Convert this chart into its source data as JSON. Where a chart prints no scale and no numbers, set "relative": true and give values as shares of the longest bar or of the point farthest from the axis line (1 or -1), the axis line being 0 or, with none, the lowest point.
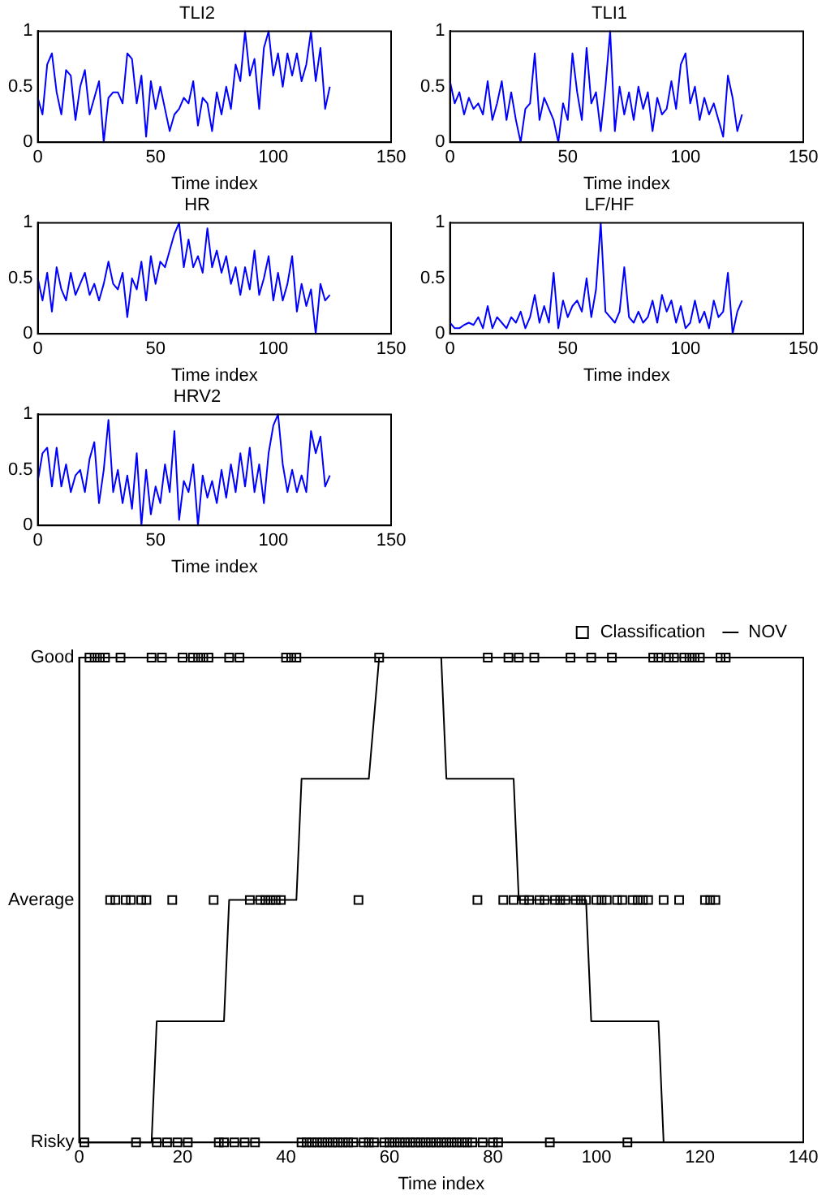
{
  "chart_data": [
    {
      "type": "line",
      "title": "TLI2",
      "xlabel": "Time index",
      "color": "#0000ff",
      "xlim": [
        0,
        150
      ],
      "xticks": [
        0,
        50,
        100,
        150
      ],
      "ylim": [
        0,
        1
      ],
      "yticks": [
        0,
        0.5,
        1
      ],
      "x": [
        0,
        2,
        4,
        6,
        8,
        10,
        12,
        14,
        16,
        18,
        20,
        22,
        24,
        26,
        28,
        30,
        32,
        34,
        36,
        38,
        40,
        42,
        44,
        46,
        48,
        50,
        52,
        54,
        56,
        58,
        60,
        62,
        64,
        66,
        68,
        70,
        72,
        74,
        76,
        78,
        80,
        82,
        84,
        86,
        88,
        90,
        92,
        94,
        96,
        98,
        100,
        102,
        104,
        106,
        108,
        110,
        112,
        114,
        116,
        118,
        120,
        122,
        124
      ],
      "values": [
        0.4,
        0.25,
        0.7,
        0.8,
        0.45,
        0.25,
        0.65,
        0.6,
        0.2,
        0.5,
        0.65,
        0.25,
        0.4,
        0.55,
        0.0,
        0.4,
        0.45,
        0.45,
        0.35,
        0.8,
        0.75,
        0.35,
        0.6,
        0.05,
        0.55,
        0.3,
        0.5,
        0.3,
        0.1,
        0.25,
        0.3,
        0.4,
        0.35,
        0.55,
        0.15,
        0.4,
        0.35,
        0.1,
        0.45,
        0.25,
        0.5,
        0.3,
        0.7,
        0.55,
        1.0,
        0.6,
        0.75,
        0.3,
        0.85,
        1.0,
        0.6,
        0.8,
        0.5,
        0.8,
        0.6,
        0.8,
        0.55,
        0.7,
        1.0,
        0.55,
        0.85,
        0.3,
        0.5
      ]
    },
    {
      "type": "line",
      "title": "TLI1",
      "xlabel": "Time index",
      "color": "#0000ff",
      "xlim": [
        0,
        150
      ],
      "xticks": [
        0,
        50,
        100,
        150
      ],
      "ylim": [
        0,
        1
      ],
      "yticks": [
        0,
        0.5,
        1
      ],
      "x": [
        0,
        2,
        4,
        6,
        8,
        10,
        12,
        14,
        16,
        18,
        20,
        22,
        24,
        26,
        28,
        30,
        32,
        34,
        36,
        38,
        40,
        42,
        44,
        46,
        48,
        50,
        52,
        54,
        56,
        58,
        60,
        62,
        64,
        66,
        68,
        70,
        72,
        74,
        76,
        78,
        80,
        82,
        84,
        86,
        88,
        90,
        92,
        94,
        96,
        98,
        100,
        102,
        104,
        106,
        108,
        110,
        112,
        114,
        116,
        118,
        120,
        122,
        124
      ],
      "values": [
        0.55,
        0.35,
        0.45,
        0.25,
        0.4,
        0.3,
        0.35,
        0.25,
        0.55,
        0.2,
        0.35,
        0.55,
        0.2,
        0.45,
        0.2,
        0.0,
        0.3,
        0.35,
        0.8,
        0.2,
        0.4,
        0.3,
        0.2,
        0.0,
        0.35,
        0.2,
        0.8,
        0.45,
        0.2,
        0.85,
        0.35,
        0.45,
        0.1,
        0.5,
        1.0,
        0.1,
        0.5,
        0.25,
        0.45,
        0.2,
        0.5,
        0.3,
        0.45,
        0.1,
        0.4,
        0.25,
        0.3,
        0.55,
        0.3,
        0.7,
        0.8,
        0.35,
        0.5,
        0.2,
        0.4,
        0.25,
        0.35,
        0.2,
        0.05,
        0.6,
        0.4,
        0.1,
        0.25
      ]
    },
    {
      "type": "line",
      "title": "HR",
      "xlabel": "Time index",
      "color": "#0000ff",
      "xlim": [
        0,
        150
      ],
      "xticks": [
        0,
        50,
        100,
        150
      ],
      "ylim": [
        0,
        1
      ],
      "yticks": [
        0,
        0.5,
        1
      ],
      "x": [
        0,
        2,
        4,
        6,
        8,
        10,
        12,
        14,
        16,
        18,
        20,
        22,
        24,
        26,
        28,
        30,
        32,
        34,
        36,
        38,
        40,
        42,
        44,
        46,
        48,
        50,
        52,
        54,
        56,
        58,
        60,
        62,
        64,
        66,
        68,
        70,
        72,
        74,
        76,
        78,
        80,
        82,
        84,
        86,
        88,
        90,
        92,
        94,
        96,
        98,
        100,
        102,
        104,
        106,
        108,
        110,
        112,
        114,
        116,
        118,
        120,
        122,
        124
      ],
      "values": [
        0.5,
        0.3,
        0.55,
        0.2,
        0.6,
        0.4,
        0.3,
        0.55,
        0.35,
        0.45,
        0.55,
        0.35,
        0.45,
        0.3,
        0.45,
        0.65,
        0.45,
        0.4,
        0.55,
        0.15,
        0.5,
        0.4,
        0.65,
        0.3,
        0.7,
        0.45,
        0.65,
        0.6,
        0.75,
        0.9,
        1.0,
        0.6,
        0.85,
        0.6,
        0.7,
        0.55,
        0.95,
        0.6,
        0.75,
        0.55,
        0.7,
        0.45,
        0.6,
        0.35,
        0.6,
        0.4,
        0.75,
        0.35,
        0.5,
        0.7,
        0.3,
        0.55,
        0.3,
        0.45,
        0.7,
        0.2,
        0.45,
        0.25,
        0.4,
        0.0,
        0.45,
        0.3,
        0.35
      ]
    },
    {
      "type": "line",
      "title": "LF/HF",
      "xlabel": "Time index",
      "color": "#0000ff",
      "xlim": [
        0,
        150
      ],
      "xticks": [
        0,
        50,
        100,
        150
      ],
      "ylim": [
        0,
        1
      ],
      "yticks": [
        0,
        0.5,
        1
      ],
      "x": [
        0,
        2,
        4,
        6,
        8,
        10,
        12,
        14,
        16,
        18,
        20,
        22,
        24,
        26,
        28,
        30,
        32,
        34,
        36,
        38,
        40,
        42,
        44,
        46,
        48,
        50,
        52,
        54,
        56,
        58,
        60,
        62,
        64,
        66,
        68,
        70,
        72,
        74,
        76,
        78,
        80,
        82,
        84,
        86,
        88,
        90,
        92,
        94,
        96,
        98,
        100,
        102,
        104,
        106,
        108,
        110,
        112,
        114,
        116,
        118,
        120,
        122,
        124
      ],
      "values": [
        0.1,
        0.05,
        0.05,
        0.08,
        0.1,
        0.08,
        0.15,
        0.05,
        0.25,
        0.05,
        0.15,
        0.1,
        0.05,
        0.15,
        0.1,
        0.2,
        0.05,
        0.15,
        0.35,
        0.1,
        0.25,
        0.1,
        0.55,
        0.05,
        0.3,
        0.15,
        0.25,
        0.3,
        0.2,
        0.5,
        0.15,
        0.4,
        1.0,
        0.2,
        0.15,
        0.1,
        0.2,
        0.6,
        0.15,
        0.1,
        0.2,
        0.1,
        0.15,
        0.3,
        0.1,
        0.35,
        0.2,
        0.3,
        0.1,
        0.25,
        0.05,
        0.1,
        0.3,
        0.1,
        0.2,
        0.05,
        0.3,
        0.15,
        0.2,
        0.55,
        0.0,
        0.2,
        0.3
      ]
    },
    {
      "type": "line",
      "title": "HRV2",
      "xlabel": "Time index",
      "color": "#0000ff",
      "xlim": [
        0,
        150
      ],
      "xticks": [
        0,
        50,
        100,
        150
      ],
      "ylim": [
        0,
        1
      ],
      "yticks": [
        0,
        0.5,
        1
      ],
      "x": [
        0,
        2,
        4,
        6,
        8,
        10,
        12,
        14,
        16,
        18,
        20,
        22,
        24,
        26,
        28,
        30,
        32,
        34,
        36,
        38,
        40,
        42,
        44,
        46,
        48,
        50,
        52,
        54,
        56,
        58,
        60,
        62,
        64,
        66,
        68,
        70,
        72,
        74,
        76,
        78,
        80,
        82,
        84,
        86,
        88,
        90,
        92,
        94,
        96,
        98,
        100,
        102,
        104,
        106,
        108,
        110,
        112,
        114,
        116,
        118,
        120,
        122,
        124
      ],
      "values": [
        0.4,
        0.65,
        0.7,
        0.35,
        0.7,
        0.35,
        0.55,
        0.3,
        0.45,
        0.5,
        0.3,
        0.6,
        0.75,
        0.2,
        0.5,
        0.95,
        0.3,
        0.5,
        0.2,
        0.45,
        0.15,
        0.65,
        0.0,
        0.5,
        0.1,
        0.35,
        0.2,
        0.55,
        0.3,
        0.85,
        0.05,
        0.4,
        0.3,
        0.55,
        0.0,
        0.45,
        0.25,
        0.4,
        0.2,
        0.5,
        0.25,
        0.55,
        0.3,
        0.65,
        0.35,
        0.7,
        0.3,
        0.55,
        0.2,
        0.65,
        0.9,
        1.0,
        0.55,
        0.3,
        0.5,
        0.3,
        0.45,
        0.3,
        0.85,
        0.65,
        0.8,
        0.35,
        0.45
      ]
    },
    {
      "type": "scatter",
      "xlabel": "Time index",
      "xlim": [
        0,
        140
      ],
      "xticks": [
        0,
        20,
        40,
        60,
        80,
        100,
        120,
        140
      ],
      "y_categories": [
        "Good",
        "Average",
        "Risky"
      ],
      "relative": true,
      "legend": "top right",
      "series": [
        {
          "name": "Classification",
          "type": "scatter",
          "marker": "square",
          "color": "#000000",
          "x": [
            1,
            2,
            3,
            4,
            5,
            6,
            7,
            8,
            9,
            10,
            11,
            12,
            13,
            14,
            15,
            16,
            17,
            18,
            19,
            20,
            21,
            22,
            23,
            24,
            25,
            26,
            27,
            28,
            29,
            30,
            31,
            32,
            33,
            34,
            35,
            36,
            37,
            38,
            39,
            40,
            41,
            42,
            43,
            44,
            45,
            46,
            47,
            48,
            49,
            50,
            51,
            52,
            53,
            54,
            55,
            56,
            57,
            58,
            59,
            60,
            61,
            62,
            63,
            64,
            65,
            66,
            67,
            68,
            69,
            70,
            71,
            72,
            73,
            74,
            75,
            76,
            77,
            78,
            79,
            80,
            81,
            82,
            83,
            84,
            85,
            86,
            87,
            88,
            89,
            90,
            91,
            92,
            93,
            94,
            95,
            96,
            97,
            98,
            99,
            100,
            101,
            102,
            103,
            104,
            105,
            106,
            107,
            108,
            109,
            110,
            111,
            112,
            113,
            114,
            115,
            116,
            117,
            118,
            119,
            120,
            121,
            122,
            123,
            124,
            125
          ],
          "values": [
            0,
            1,
            1,
            1,
            1,
            0.5,
            0.5,
            1,
            0.5,
            0.5,
            0,
            0.5,
            0.5,
            1,
            0,
            1,
            0,
            0.5,
            0,
            1,
            0,
            1,
            1,
            1,
            1,
            0.5,
            0,
            0,
            1,
            0,
            1,
            0,
            0.5,
            0,
            0.5,
            0.5,
            0.5,
            0.5,
            0.5,
            1,
            1,
            1,
            0,
            0,
            0,
            0,
            0,
            0,
            0,
            0,
            0,
            0,
            0,
            0.5,
            0,
            0,
            0,
            1,
            0,
            0,
            0,
            0,
            0,
            0,
            0,
            0,
            0,
            0,
            0,
            0,
            0,
            0,
            0,
            0,
            0,
            0,
            0.5,
            0,
            1,
            0,
            0,
            0.5,
            1,
            0.5,
            1,
            0.5,
            0.5,
            1,
            0.5,
            0.5,
            0,
            0.5,
            0.5,
            0.5,
            1,
            0.5,
            0.5,
            0.5,
            1,
            0.5,
            0.5,
            0.5,
            1,
            0.5,
            0.5,
            0,
            0.5,
            0.5,
            0.5,
            0.5,
            1,
            1,
            0.5,
            1,
            1,
            0.5,
            1,
            1,
            1,
            1,
            0.5,
            0.5,
            0.5,
            1,
            1
          ]
        },
        {
          "name": "NOV",
          "type": "line",
          "marker": "none",
          "color": "#000000",
          "x": [
            0,
            14,
            15,
            28,
            29,
            42,
            43,
            56,
            58,
            70,
            71,
            84,
            85,
            98,
            99,
            112,
            113
          ],
          "values": [
            0,
            0,
            0.25,
            0.25,
            0.5,
            0.5,
            0.75,
            0.75,
            1,
            1,
            0.75,
            0.75,
            0.5,
            0.5,
            0.25,
            0.25,
            0
          ]
        }
      ]
    }
  ]
}
